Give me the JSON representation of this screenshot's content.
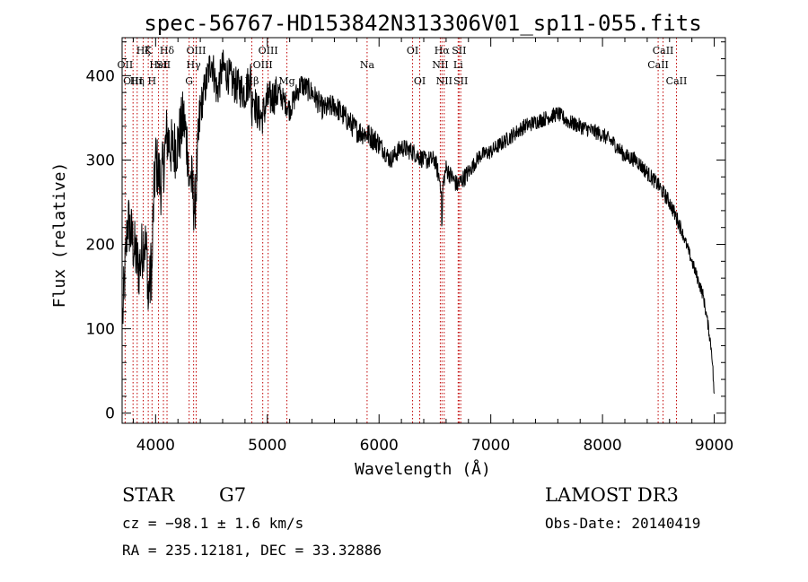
{
  "chart_data": {
    "type": "line",
    "title": "spec-56767-HD153842N313306V01_sp11-055.fits",
    "xlabel": "Wavelength (Å)",
    "ylabel": "Flux (relative)",
    "xlim": [
      3700,
      9100
    ],
    "ylim": [
      -12,
      445
    ],
    "xticks": [
      "4000",
      "5000",
      "6000",
      "7000",
      "8000",
      "9000"
    ],
    "yticks": [
      "0",
      "100",
      "200",
      "300",
      "400"
    ],
    "grid": false,
    "series": [
      {
        "x": [
          3700,
          3750,
          3800,
          3850,
          3900,
          3950,
          4000,
          4050,
          4100,
          4150,
          4200,
          4250,
          4300,
          4350,
          4400,
          4450,
          4500,
          4550,
          4600,
          4700,
          4800,
          4850,
          4900,
          4950,
          5000,
          5100,
          5200,
          5300,
          5400,
          5500,
          5600,
          5700,
          5800,
          5900,
          6000,
          6100,
          6200,
          6300,
          6400,
          6500,
          6563,
          6600,
          6700,
          6800,
          6900,
          7000,
          7100,
          7200,
          7300,
          7400,
          7500,
          7600,
          7700,
          7800,
          7900,
          8000,
          8100,
          8200,
          8300,
          8400,
          8500,
          8600,
          8700,
          8800,
          8850,
          8900,
          8950,
          8980,
          9000
        ],
        "y": [
          100,
          230,
          200,
          170,
          210,
          150,
          300,
          270,
          330,
          310,
          320,
          350,
          300,
          240,
          360,
          390,
          420,
          380,
          410,
          390,
          380,
          400,
          360,
          350,
          370,
          380,
          360,
          390,
          380,
          360,
          365,
          350,
          335,
          330,
          320,
          300,
          315,
          310,
          300,
          300,
          265,
          290,
          270,
          285,
          305,
          310,
          320,
          330,
          340,
          345,
          350,
          355,
          345,
          340,
          335,
          330,
          320,
          305,
          300,
          285,
          270,
          250,
          220,
          180,
          160,
          140,
          100,
          70,
          20
        ]
      }
    ],
    "lines": [
      {
        "wl": 3798,
        "label": "OIII",
        "row": 3
      },
      {
        "wl": 3835,
        "label": "Hη",
        "row": 3
      },
      {
        "wl": 3889,
        "label": "Hζ",
        "row": 1
      },
      {
        "wl": 3727,
        "label": "OII",
        "row": 2
      },
      {
        "wl": 3934,
        "label": "K",
        "row": 1
      },
      {
        "wl": 3968,
        "label": "H",
        "row": 3
      },
      {
        "wl": 4026,
        "label": "HeI",
        "row": 2
      },
      {
        "wl": 4070,
        "label": "SII",
        "row": 2
      },
      {
        "wl": 4102,
        "label": "Hδ",
        "row": 1
      },
      {
        "wl": 4300,
        "label": "G",
        "row": 3
      },
      {
        "wl": 4340,
        "label": "Hγ",
        "row": 2
      },
      {
        "wl": 4363,
        "label": "OIII",
        "row": 1
      },
      {
        "wl": 4861,
        "label": "Hβ",
        "row": 3
      },
      {
        "wl": 4959,
        "label": "OIII",
        "row": 2
      },
      {
        "wl": 5007,
        "label": "OIII",
        "row": 1
      },
      {
        "wl": 5175,
        "label": "Mg",
        "row": 3
      },
      {
        "wl": 5893,
        "label": "Na",
        "row": 2
      },
      {
        "wl": 6300,
        "label": "OI",
        "row": 1
      },
      {
        "wl": 6364,
        "label": "OI",
        "row": 3
      },
      {
        "wl": 6548,
        "label": "NII",
        "row": 2
      },
      {
        "wl": 6563,
        "label": "Hα",
        "row": 1
      },
      {
        "wl": 6583,
        "label": "NII",
        "row": 3
      },
      {
        "wl": 6708,
        "label": "Li",
        "row": 2
      },
      {
        "wl": 6716,
        "label": "SII",
        "row": 1
      },
      {
        "wl": 6731,
        "label": "SII",
        "row": 3
      },
      {
        "wl": 8498,
        "label": "CaII",
        "row": 2
      },
      {
        "wl": 8542,
        "label": "CaII",
        "row": 1
      },
      {
        "wl": 8662,
        "label": "CaII",
        "row": 3
      }
    ]
  },
  "info": {
    "class": "STAR",
    "subclass": "G7",
    "survey": "LAMOST DR3",
    "cz": "cz = −98.1 ± 1.6 km/s",
    "obs_date": "Obs-Date: 20140419",
    "coords": "RA = 235.12181, DEC =  33.32886"
  }
}
